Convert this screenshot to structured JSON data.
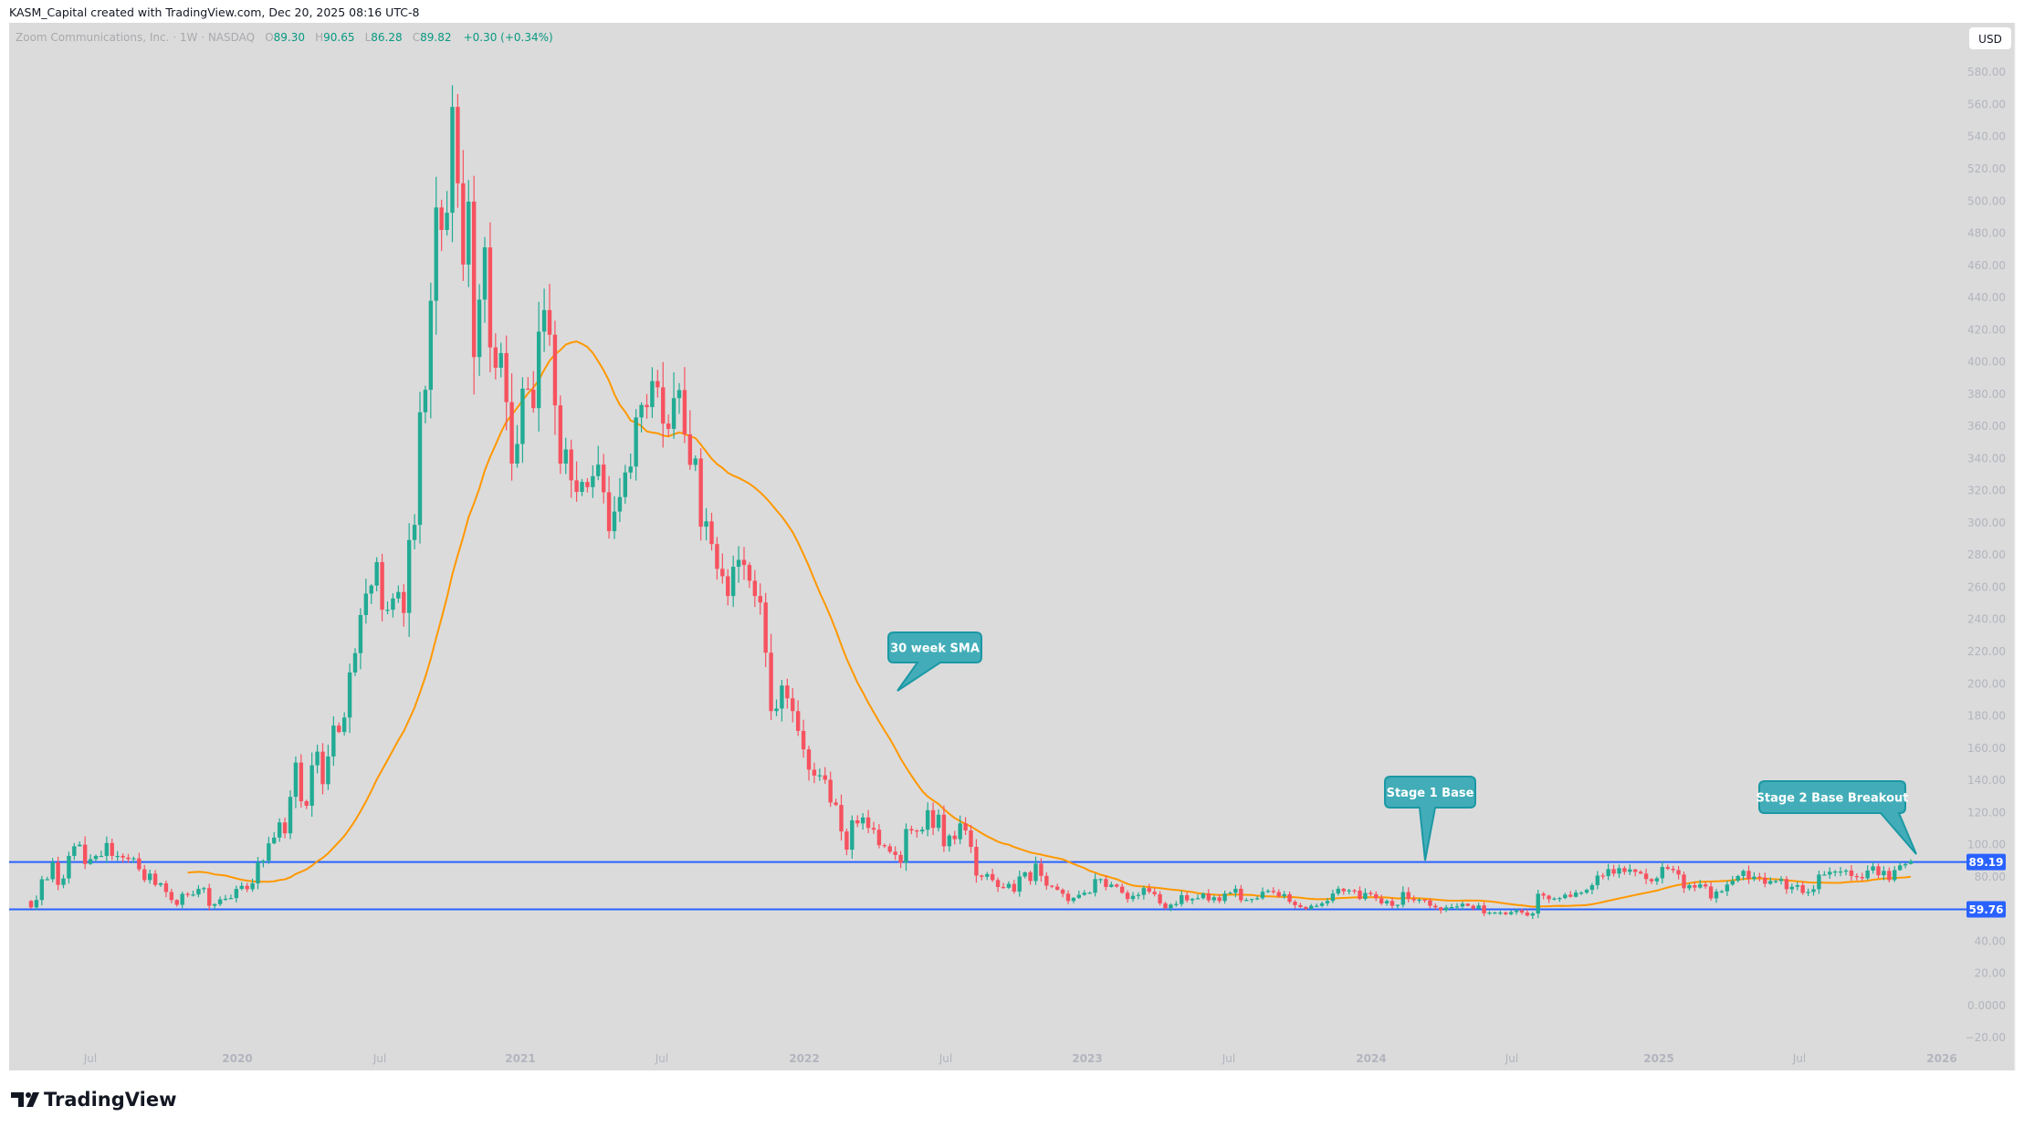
{
  "header": {
    "attribution": "KASM_Capital created with TradingView.com, Dec 20, 2025 08:16 UTC-8"
  },
  "legend": {
    "symbol": "Zoom Communications, Inc. · 1W · NASDAQ",
    "open_label": "O",
    "open": "89.30",
    "high_label": "H",
    "high": "90.65",
    "low_label": "L",
    "low": "86.28",
    "close_label": "C",
    "close": "89.82",
    "change": "+0.30 (+0.34%)"
  },
  "price_axis": {
    "currency_button": "USD"
  },
  "footer": {
    "logo_text": "TradingView"
  },
  "colors": {
    "background": "#dbdbdb",
    "up": "#22ab94",
    "down": "#f7525f",
    "sma": "#ff9800",
    "hline": "#2962ff",
    "callout_fill": "#42adb8",
    "callout_border": "#1b98a4",
    "legend_value": "#089981"
  },
  "chart_data": {
    "type": "candlestick",
    "interval": "1W",
    "ylim": [
      -20,
      590
    ],
    "grid": false,
    "x_tick_labels": [
      "Jul",
      "2020",
      "Jul",
      "2021",
      "Jul",
      "2022",
      "Jul",
      "2023",
      "Jul",
      "2024",
      "Jul",
      "2025",
      "Jul",
      "2026"
    ],
    "y_tick_values": [
      580,
      560,
      540,
      520,
      500,
      480,
      460,
      440,
      420,
      400,
      380,
      360,
      340,
      320,
      300,
      280,
      260,
      240,
      220,
      200,
      180,
      160,
      140,
      120,
      100,
      80,
      40,
      20,
      0,
      -20
    ],
    "y_tick_labels": [
      "580.00",
      "560.00",
      "540.00",
      "520.00",
      "500.00",
      "480.00",
      "460.00",
      "440.00",
      "420.00",
      "400.00",
      "380.00",
      "360.00",
      "340.00",
      "320.00",
      "300.00",
      "280.00",
      "260.00",
      "240.00",
      "220.00",
      "200.00",
      "180.00",
      "160.00",
      "140.00",
      "120.00",
      "100.00",
      "80.00",
      "40.00",
      "20.00",
      "0.0000",
      "−20.00"
    ],
    "closes": [
      61,
      65.6,
      78.5,
      78.5,
      89,
      75,
      79,
      93,
      99,
      100,
      88,
      91,
      93,
      93,
      101,
      93,
      93,
      92,
      91,
      91.5,
      84.7,
      78,
      82,
      75,
      76,
      70.6,
      65.6,
      62.6,
      69.4,
      68.7,
      69,
      72.5,
      73,
      62,
      63,
      66,
      66.4,
      66.8,
      72.5,
      74.4,
      72.3,
      75.9,
      89,
      90,
      100.8,
      104.4,
      113.8,
      107,
      129.7,
      151,
      127,
      124.2,
      149.3,
      157.8,
      137.6,
      154.8,
      174,
      170,
      179,
      207,
      219,
      242.7,
      256,
      261,
      275.6,
      246,
      246,
      253,
      257,
      244,
      289.3,
      298.7,
      368.7,
      382.7,
      438,
      496,
      482,
      492.7,
      558.5,
      511,
      460.5,
      499.6,
      403,
      438.7,
      471.2,
      409,
      396.4,
      405.5,
      375,
      336.8,
      349,
      383.4,
      382.7,
      371.3,
      418.8,
      432.2,
      416.9,
      373,
      336.8,
      345.6,
      326.4,
      319.2,
      325.4,
      322.2,
      329,
      336.2,
      319,
      294.8,
      307,
      316,
      331.3,
      335,
      365.5,
      373.3,
      371.9,
      388.1,
      384.2,
      361.7,
      358.4,
      377.5,
      382.5,
      355,
      336,
      340,
      297.6,
      300.9,
      286.8,
      271.4,
      266.8,
      254.5,
      272.7,
      277,
      273.8,
      264,
      254.5,
      250.5,
      219.3,
      183,
      184.6,
      198.9,
      190.9,
      183,
      170.7,
      159.2,
      146.6,
      142.9,
      143.1,
      140.3,
      126.2,
      124.7,
      108.2,
      96.9,
      115.1,
      113.2,
      116.9,
      110.4,
      109.3,
      99.7,
      99,
      95.6,
      93.6,
      88.7,
      109.7,
      108.8,
      108.2,
      109.3,
      121.4,
      110.4,
      118.6,
      99,
      105.6,
      103.4,
      113.2,
      108.8,
      98.6,
      80.8,
      80,
      81.7,
      78,
      73.7,
      73.2,
      75.6,
      70.8,
      80.2,
      82.8,
      77.4,
      88.2,
      80.6,
      74.5,
      73.9,
      72,
      69.5,
      65,
      66.9,
      68.8,
      70.1,
      70.1,
      78.6,
      78.6,
      73.7,
      75.2,
      73.9,
      70.1,
      66.2,
      68.2,
      68.8,
      73,
      70.7,
      69.2,
      63.5,
      60.5,
      62.7,
      63.1,
      68.6,
      65.4,
      66.3,
      66.7,
      69.6,
      65.4,
      67.3,
      65,
      69.6,
      70.1,
      72.6,
      65.4,
      65.6,
      66.2,
      66.7,
      70.7,
      71.3,
      70.5,
      67.9,
      69.2,
      64.5,
      62.4,
      61.2,
      60.1,
      62,
      62,
      63.5,
      65,
      69.6,
      72.6,
      71,
      71.6,
      71.4,
      66.3,
      70,
      69.2,
      66.7,
      63.5,
      65,
      62,
      62.6,
      70.5,
      66.3,
      65.4,
      65.8,
      65.4,
      62,
      61,
      59.2,
      61,
      61.2,
      61.6,
      63.3,
      62,
      60.3,
      62.2,
      57.3,
      57.8,
      57.8,
      57.8,
      56.8,
      58.1,
      59.1,
      57.8,
      55.9,
      57.2,
      69.5,
      68.3,
      66.1,
      66.5,
      66.8,
      68.9,
      67.6,
      70.2,
      70.2,
      71.9,
      74.8,
      80.8,
      80.4,
      84.8,
      82,
      85.4,
      83.1,
      84.6,
      83.1,
      82,
      78.6,
      77.2,
      79.1,
      86.1,
      85,
      84.2,
      81.4,
      72.9,
      74.8,
      73.3,
      75.3,
      74,
      66.6,
      70.8,
      71,
      75.2,
      77.6,
      80.5,
      83.7,
      78.6,
      80.1,
      79.5,
      75.7,
      77.4,
      77.4,
      78.6,
      72.3,
      73.8,
      74.8,
      70,
      70.6,
      72.3,
      81.4,
      81.4,
      83.1,
      83.3,
      83.3,
      83.9,
      80.5,
      79.9,
      79.1,
      83.9,
      86.5,
      81,
      83.7,
      78,
      84.2,
      87.1,
      88,
      89.82
    ],
    "first_open": 65,
    "indicator": {
      "type": "SMA",
      "period": 30
    },
    "horizontal_lines": [
      {
        "price": 89.19,
        "label": "89.19"
      },
      {
        "price": 59.76,
        "label": "59.76"
      }
    ],
    "annotations": [
      {
        "text": "30 week SMA"
      },
      {
        "text": "Stage 1 Base"
      },
      {
        "text": "Stage 2 Base Breakout"
      }
    ]
  }
}
